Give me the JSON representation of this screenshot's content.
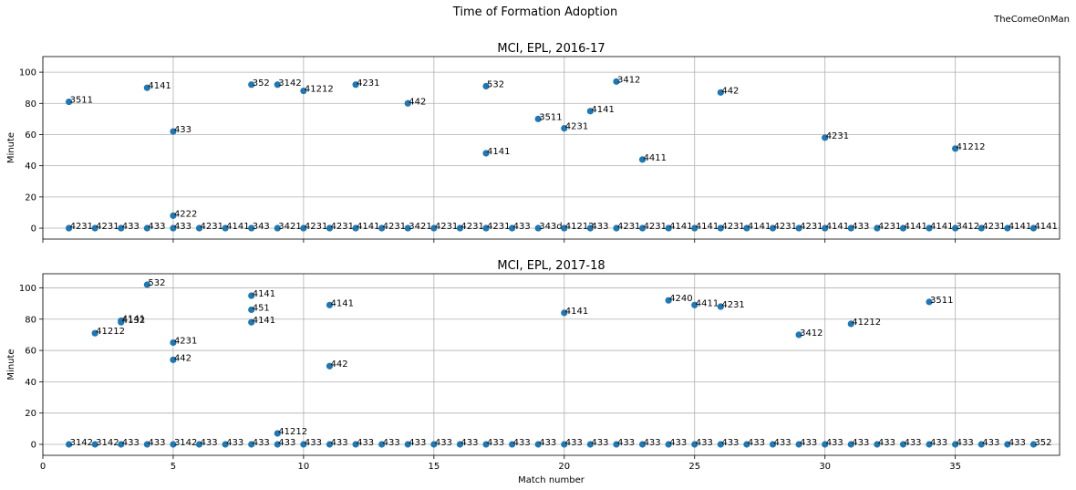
{
  "figure": {
    "title": "Time of Formation Adoption",
    "watermark": "TheComeOnMan",
    "marker_color": "#1f77b4",
    "grid_color": "#b0b0b0"
  },
  "chart_data": [
    {
      "type": "scatter",
      "title": "MCI, EPL, 2016-17",
      "xlabel": "",
      "ylabel": "Minute",
      "xlim": [
        0,
        39
      ],
      "ylim": [
        -7,
        110
      ],
      "xticks": [
        0,
        5,
        10,
        15,
        20,
        25,
        30,
        35
      ],
      "yticks": [
        0,
        20,
        40,
        60,
        80,
        100
      ],
      "show_x_tick_labels": false,
      "grid": true,
      "points": [
        {
          "x": 1,
          "y": 81,
          "label": "3511"
        },
        {
          "x": 4,
          "y": 90,
          "label": "4141"
        },
        {
          "x": 5,
          "y": 62,
          "label": "433"
        },
        {
          "x": 5,
          "y": 8,
          "label": "4222"
        },
        {
          "x": 8,
          "y": 92,
          "label": "352"
        },
        {
          "x": 9,
          "y": 92,
          "label": "3142"
        },
        {
          "x": 10,
          "y": 88,
          "label": "41212"
        },
        {
          "x": 12,
          "y": 92,
          "label": "4231"
        },
        {
          "x": 14,
          "y": 80,
          "label": "442"
        },
        {
          "x": 17,
          "y": 91,
          "label": "532"
        },
        {
          "x": 17,
          "y": 48,
          "label": "4141"
        },
        {
          "x": 19,
          "y": 70,
          "label": "3511"
        },
        {
          "x": 20,
          "y": 64,
          "label": "4231"
        },
        {
          "x": 21,
          "y": 75,
          "label": "4141"
        },
        {
          "x": 22,
          "y": 94,
          "label": "3412"
        },
        {
          "x": 23,
          "y": 44,
          "label": "4411"
        },
        {
          "x": 26,
          "y": 87,
          "label": "442"
        },
        {
          "x": 30,
          "y": 58,
          "label": "4231"
        },
        {
          "x": 35,
          "y": 51,
          "label": "41212"
        },
        {
          "x": 1,
          "y": 0,
          "label": "4231"
        },
        {
          "x": 2,
          "y": 0,
          "label": "4231"
        },
        {
          "x": 3,
          "y": 0,
          "label": "433"
        },
        {
          "x": 4,
          "y": 0,
          "label": "433"
        },
        {
          "x": 5,
          "y": 0,
          "label": "433"
        },
        {
          "x": 6,
          "y": 0,
          "label": "4231"
        },
        {
          "x": 7,
          "y": 0,
          "label": "4141"
        },
        {
          "x": 8,
          "y": 0,
          "label": "343"
        },
        {
          "x": 9,
          "y": 0,
          "label": "3421"
        },
        {
          "x": 10,
          "y": 0,
          "label": "4231"
        },
        {
          "x": 11,
          "y": 0,
          "label": "4231"
        },
        {
          "x": 12,
          "y": 0,
          "label": "4141"
        },
        {
          "x": 13,
          "y": 0,
          "label": "4231"
        },
        {
          "x": 14,
          "y": 0,
          "label": "3421"
        },
        {
          "x": 15,
          "y": 0,
          "label": "4231"
        },
        {
          "x": 16,
          "y": 0,
          "label": "4231"
        },
        {
          "x": 17,
          "y": 0,
          "label": "4231"
        },
        {
          "x": 18,
          "y": 0,
          "label": "433"
        },
        {
          "x": 19,
          "y": 0,
          "label": "343d"
        },
        {
          "x": 20,
          "y": 0,
          "label": "41212"
        },
        {
          "x": 21,
          "y": 0,
          "label": "433"
        },
        {
          "x": 22,
          "y": 0,
          "label": "4231"
        },
        {
          "x": 23,
          "y": 0,
          "label": "4231"
        },
        {
          "x": 24,
          "y": 0,
          "label": "4141"
        },
        {
          "x": 25,
          "y": 0,
          "label": "4141"
        },
        {
          "x": 26,
          "y": 0,
          "label": "4231"
        },
        {
          "x": 27,
          "y": 0,
          "label": "4141"
        },
        {
          "x": 28,
          "y": 0,
          "label": "4231"
        },
        {
          "x": 29,
          "y": 0,
          "label": "4231"
        },
        {
          "x": 30,
          "y": 0,
          "label": "4141"
        },
        {
          "x": 31,
          "y": 0,
          "label": "433"
        },
        {
          "x": 32,
          "y": 0,
          "label": "4231"
        },
        {
          "x": 33,
          "y": 0,
          "label": "4141"
        },
        {
          "x": 34,
          "y": 0,
          "label": "4141"
        },
        {
          "x": 35,
          "y": 0,
          "label": "3412"
        },
        {
          "x": 36,
          "y": 0,
          "label": "4231"
        },
        {
          "x": 37,
          "y": 0,
          "label": "4141"
        },
        {
          "x": 38,
          "y": 0,
          "label": "4141"
        }
      ]
    },
    {
      "type": "scatter",
      "title": "MCI, EPL, 2017-18",
      "xlabel": "Match number",
      "ylabel": "Minute",
      "xlim": [
        0,
        39
      ],
      "ylim": [
        -7,
        109
      ],
      "xticks": [
        0,
        5,
        10,
        15,
        20,
        25,
        30,
        35
      ],
      "yticks": [
        0,
        20,
        40,
        60,
        80,
        100
      ],
      "show_x_tick_labels": true,
      "grid": true,
      "points": [
        {
          "x": 2,
          "y": 71,
          "label": "41212"
        },
        {
          "x": 3,
          "y": 79,
          "label": "4141"
        },
        {
          "x": 3,
          "y": 78,
          "label": "4132"
        },
        {
          "x": 4,
          "y": 102,
          "label": "532"
        },
        {
          "x": 5,
          "y": 65,
          "label": "4231"
        },
        {
          "x": 5,
          "y": 54,
          "label": "442"
        },
        {
          "x": 8,
          "y": 95,
          "label": "4141"
        },
        {
          "x": 8,
          "y": 86,
          "label": "451"
        },
        {
          "x": 8,
          "y": 78,
          "label": "4141"
        },
        {
          "x": 9,
          "y": 7,
          "label": "41212"
        },
        {
          "x": 11,
          "y": 89,
          "label": "4141"
        },
        {
          "x": 11,
          "y": 50,
          "label": "442"
        },
        {
          "x": 20,
          "y": 84,
          "label": "4141"
        },
        {
          "x": 24,
          "y": 92,
          "label": "4240"
        },
        {
          "x": 25,
          "y": 89,
          "label": "4411"
        },
        {
          "x": 26,
          "y": 88,
          "label": "4231"
        },
        {
          "x": 29,
          "y": 70,
          "label": "3412"
        },
        {
          "x": 31,
          "y": 77,
          "label": "41212"
        },
        {
          "x": 34,
          "y": 91,
          "label": "3511"
        },
        {
          "x": 1,
          "y": 0,
          "label": "3142"
        },
        {
          "x": 2,
          "y": 0,
          "label": "3142"
        },
        {
          "x": 3,
          "y": 0,
          "label": "433"
        },
        {
          "x": 4,
          "y": 0,
          "label": "433"
        },
        {
          "x": 5,
          "y": 0,
          "label": "3142"
        },
        {
          "x": 6,
          "y": 0,
          "label": "433"
        },
        {
          "x": 7,
          "y": 0,
          "label": "433"
        },
        {
          "x": 8,
          "y": 0,
          "label": "433"
        },
        {
          "x": 9,
          "y": 0,
          "label": "433"
        },
        {
          "x": 10,
          "y": 0,
          "label": "433"
        },
        {
          "x": 11,
          "y": 0,
          "label": "433"
        },
        {
          "x": 12,
          "y": 0,
          "label": "433"
        },
        {
          "x": 13,
          "y": 0,
          "label": "433"
        },
        {
          "x": 14,
          "y": 0,
          "label": "433"
        },
        {
          "x": 15,
          "y": 0,
          "label": "433"
        },
        {
          "x": 16,
          "y": 0,
          "label": "433"
        },
        {
          "x": 17,
          "y": 0,
          "label": "433"
        },
        {
          "x": 18,
          "y": 0,
          "label": "433"
        },
        {
          "x": 19,
          "y": 0,
          "label": "433"
        },
        {
          "x": 20,
          "y": 0,
          "label": "433"
        },
        {
          "x": 21,
          "y": 0,
          "label": "433"
        },
        {
          "x": 22,
          "y": 0,
          "label": "433"
        },
        {
          "x": 23,
          "y": 0,
          "label": "433"
        },
        {
          "x": 24,
          "y": 0,
          "label": "433"
        },
        {
          "x": 25,
          "y": 0,
          "label": "433"
        },
        {
          "x": 26,
          "y": 0,
          "label": "433"
        },
        {
          "x": 27,
          "y": 0,
          "label": "433"
        },
        {
          "x": 28,
          "y": 0,
          "label": "433"
        },
        {
          "x": 29,
          "y": 0,
          "label": "433"
        },
        {
          "x": 30,
          "y": 0,
          "label": "433"
        },
        {
          "x": 31,
          "y": 0,
          "label": "433"
        },
        {
          "x": 32,
          "y": 0,
          "label": "433"
        },
        {
          "x": 33,
          "y": 0,
          "label": "433"
        },
        {
          "x": 34,
          "y": 0,
          "label": "433"
        },
        {
          "x": 35,
          "y": 0,
          "label": "433"
        },
        {
          "x": 36,
          "y": 0,
          "label": "433"
        },
        {
          "x": 37,
          "y": 0,
          "label": "433"
        },
        {
          "x": 38,
          "y": 0,
          "label": "352"
        }
      ]
    }
  ]
}
